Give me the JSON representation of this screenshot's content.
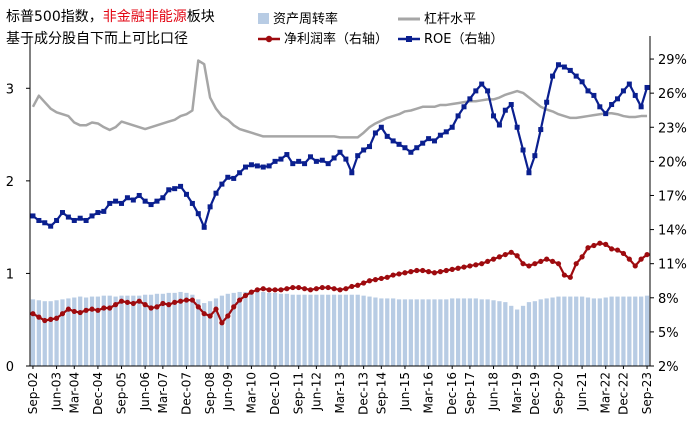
{
  "title": {
    "part1": "标普500指数，",
    "part2": "非金融非能源",
    "part3": "板块",
    "line2": "基于成分股自下而上可比口径"
  },
  "colors": {
    "bar": "#b8cce4",
    "grey": "#a6a6a6",
    "red": "#9e0b0f",
    "blue": "#0a1f8f",
    "title_accent": "#e30613"
  },
  "chart_data": {
    "type": "bar+line",
    "xlabel": "",
    "ylabel": "",
    "left_axis": {
      "ylim": [
        0,
        3.5
      ],
      "ticks": [
        "0",
        "1",
        "2",
        "3"
      ]
    },
    "right_axis": {
      "ylim": [
        0.02,
        0.305
      ],
      "ticks": [
        "2%",
        "5%",
        "8%",
        "11%",
        "14%",
        "17%",
        "20%",
        "23%",
        "26%",
        "29%"
      ]
    },
    "x_tick_labels": [
      "Sep-02",
      "Jun-03",
      "Mar-04",
      "Dec-04",
      "Sep-05",
      "Jun-06",
      "Mar-07",
      "Dec-07",
      "Sep-08",
      "Jun-09",
      "Mar-10",
      "Dec-10",
      "Sep-11",
      "Jun-12",
      "Mar-13",
      "Dec-13",
      "Sep-14",
      "Jun-15",
      "Mar-16",
      "Dec-16",
      "Sep-17",
      "Jun-18",
      "Mar-19",
      "Dec-19",
      "Sep-20",
      "Jun-21",
      "Mar-22",
      "Dec-22",
      "Sep-23"
    ],
    "legend": [
      "资产周转率",
      "杠杆水平",
      "净利润率（右轴）",
      "ROE（右轴）"
    ],
    "series": [
      {
        "name": "资产周转率",
        "type": "bar",
        "axis": "left",
        "values": [
          0.72,
          0.71,
          0.7,
          0.7,
          0.71,
          0.72,
          0.73,
          0.74,
          0.75,
          0.74,
          0.75,
          0.75,
          0.76,
          0.76,
          0.75,
          0.76,
          0.76,
          0.76,
          0.76,
          0.77,
          0.77,
          0.78,
          0.78,
          0.79,
          0.79,
          0.8,
          0.79,
          0.77,
          0.72,
          0.68,
          0.7,
          0.73,
          0.76,
          0.78,
          0.79,
          0.8,
          0.8,
          0.8,
          0.8,
          0.8,
          0.79,
          0.79,
          0.78,
          0.78,
          0.77,
          0.77,
          0.77,
          0.77,
          0.77,
          0.77,
          0.77,
          0.77,
          0.77,
          0.77,
          0.77,
          0.77,
          0.76,
          0.75,
          0.74,
          0.73,
          0.73,
          0.73,
          0.72,
          0.72,
          0.72,
          0.72,
          0.72,
          0.72,
          0.72,
          0.72,
          0.72,
          0.73,
          0.73,
          0.73,
          0.73,
          0.73,
          0.72,
          0.72,
          0.71,
          0.7,
          0.69,
          0.65,
          0.61,
          0.65,
          0.69,
          0.7,
          0.72,
          0.73,
          0.74,
          0.75,
          0.75,
          0.75,
          0.75,
          0.75,
          0.74,
          0.73,
          0.73,
          0.74,
          0.75,
          0.75,
          0.75,
          0.75,
          0.75,
          0.75,
          0.76
        ]
      },
      {
        "name": "杠杆水平",
        "type": "line",
        "axis": "left",
        "values": [
          2.8,
          2.92,
          2.85,
          2.78,
          2.74,
          2.72,
          2.7,
          2.63,
          2.6,
          2.6,
          2.63,
          2.62,
          2.58,
          2.55,
          2.58,
          2.64,
          2.62,
          2.6,
          2.58,
          2.56,
          2.58,
          2.6,
          2.62,
          2.64,
          2.66,
          2.7,
          2.72,
          2.76,
          3.3,
          3.26,
          2.9,
          2.78,
          2.7,
          2.66,
          2.6,
          2.56,
          2.54,
          2.52,
          2.5,
          2.48,
          2.48,
          2.48,
          2.48,
          2.48,
          2.48,
          2.48,
          2.48,
          2.48,
          2.48,
          2.48,
          2.48,
          2.48,
          2.47,
          2.47,
          2.47,
          2.47,
          2.52,
          2.58,
          2.62,
          2.65,
          2.68,
          2.7,
          2.72,
          2.75,
          2.76,
          2.78,
          2.8,
          2.8,
          2.8,
          2.82,
          2.82,
          2.83,
          2.84,
          2.85,
          2.86,
          2.86,
          2.87,
          2.88,
          2.88,
          2.9,
          2.93,
          2.95,
          2.97,
          2.95,
          2.9,
          2.85,
          2.8,
          2.77,
          2.75,
          2.72,
          2.7,
          2.68,
          2.68,
          2.69,
          2.7,
          2.71,
          2.72,
          2.73,
          2.73,
          2.72,
          2.7,
          2.69,
          2.69,
          2.7,
          2.7
        ]
      },
      {
        "name": "净利润率（右轴）",
        "type": "line",
        "axis": "right",
        "values": [
          0.066,
          0.063,
          0.06,
          0.061,
          0.062,
          0.066,
          0.07,
          0.068,
          0.067,
          0.069,
          0.07,
          0.069,
          0.071,
          0.071,
          0.074,
          0.077,
          0.076,
          0.075,
          0.077,
          0.074,
          0.071,
          0.072,
          0.075,
          0.074,
          0.076,
          0.077,
          0.078,
          0.078,
          0.072,
          0.066,
          0.064,
          0.07,
          0.058,
          0.064,
          0.072,
          0.078,
          0.082,
          0.085,
          0.087,
          0.088,
          0.087,
          0.087,
          0.087,
          0.088,
          0.089,
          0.089,
          0.088,
          0.087,
          0.088,
          0.089,
          0.089,
          0.088,
          0.087,
          0.088,
          0.09,
          0.091,
          0.093,
          0.095,
          0.096,
          0.097,
          0.098,
          0.1,
          0.101,
          0.102,
          0.103,
          0.104,
          0.104,
          0.103,
          0.102,
          0.103,
          0.104,
          0.105,
          0.106,
          0.107,
          0.108,
          0.109,
          0.11,
          0.112,
          0.114,
          0.116,
          0.118,
          0.12,
          0.117,
          0.11,
          0.108,
          0.11,
          0.112,
          0.114,
          0.112,
          0.11,
          0.1,
          0.098,
          0.11,
          0.116,
          0.124,
          0.126,
          0.128,
          0.127,
          0.123,
          0.122,
          0.119,
          0.114,
          0.108,
          0.114,
          0.118
        ]
      },
      {
        "name": "ROE（右轴）",
        "type": "line",
        "axis": "right",
        "values": [
          0.152,
          0.148,
          0.146,
          0.143,
          0.148,
          0.155,
          0.151,
          0.148,
          0.15,
          0.148,
          0.152,
          0.155,
          0.156,
          0.163,
          0.165,
          0.163,
          0.168,
          0.166,
          0.17,
          0.165,
          0.162,
          0.165,
          0.168,
          0.175,
          0.176,
          0.178,
          0.171,
          0.163,
          0.154,
          0.142,
          0.16,
          0.172,
          0.18,
          0.186,
          0.185,
          0.19,
          0.195,
          0.197,
          0.196,
          0.195,
          0.196,
          0.2,
          0.202,
          0.206,
          0.198,
          0.2,
          0.198,
          0.204,
          0.2,
          0.201,
          0.198,
          0.203,
          0.208,
          0.202,
          0.19,
          0.205,
          0.21,
          0.213,
          0.225,
          0.23,
          0.222,
          0.218,
          0.215,
          0.212,
          0.208,
          0.212,
          0.216,
          0.22,
          0.218,
          0.223,
          0.226,
          0.23,
          0.24,
          0.248,
          0.255,
          0.262,
          0.268,
          0.262,
          0.24,
          0.232,
          0.245,
          0.25,
          0.23,
          0.21,
          0.19,
          0.205,
          0.228,
          0.252,
          0.275,
          0.285,
          0.283,
          0.28,
          0.275,
          0.27,
          0.262,
          0.258,
          0.248,
          0.242,
          0.25,
          0.255,
          0.262,
          0.268,
          0.258,
          0.248,
          0.265
        ]
      }
    ]
  }
}
